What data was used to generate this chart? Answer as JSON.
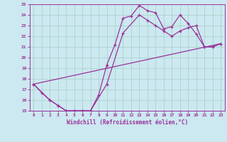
{
  "xlabel": "Windchill (Refroidissement éolien,°C)",
  "xlim": [
    -0.5,
    23.5
  ],
  "ylim": [
    15,
    25
  ],
  "xticks": [
    0,
    1,
    2,
    3,
    4,
    5,
    6,
    7,
    8,
    9,
    10,
    11,
    12,
    13,
    14,
    15,
    16,
    17,
    18,
    19,
    20,
    21,
    22,
    23
  ],
  "yticks": [
    15,
    16,
    17,
    18,
    19,
    20,
    21,
    22,
    23,
    24,
    25
  ],
  "bg_color": "#cce8f0",
  "grid_color": "#aad4cc",
  "line_color": "#993399",
  "line1_x": [
    0,
    1,
    2,
    3,
    4,
    5,
    6,
    7,
    8,
    9,
    10,
    11,
    12,
    13,
    14,
    15,
    16,
    17,
    18,
    19,
    20,
    21,
    22,
    23
  ],
  "line1_y": [
    17.5,
    16.7,
    16.0,
    15.5,
    15.0,
    15.0,
    15.0,
    15.0,
    16.5,
    19.3,
    21.2,
    23.7,
    23.9,
    24.9,
    24.4,
    24.2,
    22.7,
    22.9,
    24.0,
    23.2,
    22.2,
    21.0,
    21.0,
    21.3
  ],
  "line2_x": [
    0,
    2,
    3,
    4,
    5,
    6,
    7,
    9,
    11,
    13,
    14,
    15,
    16,
    17,
    18,
    19,
    20,
    21,
    22,
    23
  ],
  "line2_y": [
    17.5,
    16.0,
    15.5,
    15.0,
    15.0,
    15.0,
    15.0,
    17.5,
    22.3,
    24.0,
    23.5,
    23.0,
    22.5,
    22.0,
    22.5,
    22.8,
    23.0,
    21.0,
    21.0,
    21.3
  ],
  "line3_x": [
    0,
    23
  ],
  "line3_y": [
    17.5,
    21.3
  ]
}
